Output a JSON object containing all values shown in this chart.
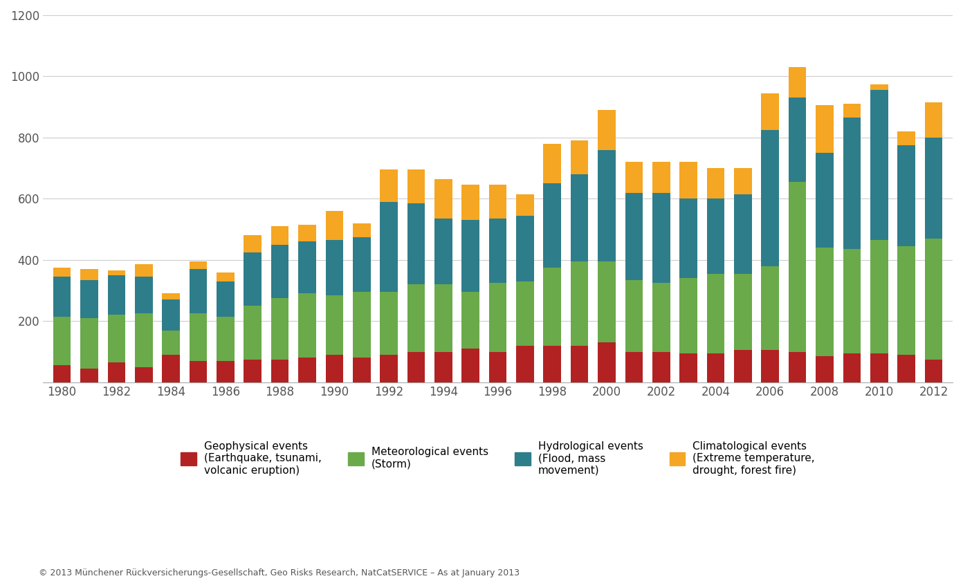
{
  "years": [
    1980,
    1981,
    1982,
    1983,
    1984,
    1985,
    1986,
    1987,
    1988,
    1989,
    1990,
    1991,
    1992,
    1993,
    1994,
    1995,
    1996,
    1997,
    1998,
    1999,
    2000,
    2001,
    2002,
    2003,
    2004,
    2005,
    2006,
    2007,
    2008,
    2009,
    2010,
    2011,
    2012
  ],
  "geophysical": [
    55,
    45,
    65,
    50,
    90,
    70,
    70,
    75,
    75,
    80,
    90,
    80,
    90,
    100,
    100,
    110,
    100,
    120,
    120,
    120,
    130,
    100,
    100,
    95,
    95,
    105,
    105,
    100,
    85,
    95,
    95,
    90,
    75
  ],
  "meteorological": [
    160,
    165,
    155,
    175,
    80,
    155,
    145,
    175,
    200,
    210,
    195,
    215,
    205,
    220,
    220,
    185,
    225,
    210,
    255,
    275,
    265,
    235,
    225,
    245,
    260,
    250,
    275,
    555,
    355,
    340,
    370,
    355,
    395
  ],
  "hydrological": [
    130,
    125,
    130,
    120,
    100,
    145,
    115,
    175,
    175,
    170,
    180,
    180,
    295,
    265,
    215,
    235,
    210,
    215,
    275,
    285,
    365,
    285,
    295,
    260,
    245,
    260,
    445,
    275,
    310,
    430,
    490,
    330,
    330
  ],
  "climatological": [
    30,
    35,
    15,
    40,
    20,
    25,
    30,
    55,
    60,
    55,
    95,
    45,
    105,
    110,
    130,
    115,
    110,
    70,
    130,
    110,
    130,
    100,
    100,
    120,
    100,
    85,
    120,
    100,
    155,
    45,
    20,
    45,
    115
  ],
  "colors": {
    "geophysical": "#b22222",
    "meteorological": "#6aaa4a",
    "hydrological": "#2e7d8a",
    "climatological": "#f5a623"
  },
  "ylim": [
    0,
    1200
  ],
  "yticks": [
    0,
    200,
    400,
    600,
    800,
    1000,
    1200
  ],
  "ylabel": "",
  "title": "",
  "legend_labels": {
    "geophysical": "Geophysical events\n(Earthquake, tsunami,\nvolcanic eruption)",
    "meteorological": "Meteorological events\n(Storm)",
    "hydrological": "Hydrological events\n(Flood, mass\nmovement)",
    "climatological": "Climatological events\n(Extreme temperature,\ndrought, forest fire)"
  },
  "footer": "© 2013 Münchener Rückversicherungs-Gesellschaft, Geo Risks Research, NatCatSERVICE – As at January 2013",
  "background_color": "#ffffff",
  "grid_color": "#cccccc",
  "bar_width": 0.65
}
